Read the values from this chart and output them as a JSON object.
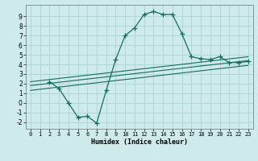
{
  "main_curve_x": [
    2,
    3,
    4,
    5,
    6,
    7,
    8,
    9,
    10,
    11,
    12,
    13,
    14,
    15,
    16,
    17,
    18,
    19,
    20,
    21,
    22,
    23
  ],
  "main_curve_y": [
    2.2,
    1.5,
    0.0,
    -1.5,
    -1.4,
    -2.1,
    1.3,
    4.5,
    7.0,
    7.8,
    9.2,
    9.5,
    9.2,
    9.2,
    7.2,
    4.8,
    4.6,
    4.5,
    4.8,
    4.2,
    4.2,
    4.3
  ],
  "line1_x": [
    0,
    23
  ],
  "line1_y": [
    2.2,
    4.8
  ],
  "line2_x": [
    0,
    23
  ],
  "line2_y": [
    1.8,
    4.4
  ],
  "line3_x": [
    0,
    23
  ],
  "line3_y": [
    1.3,
    3.9
  ],
  "line_color": "#1a6b5a",
  "bg_color": "#ceeaeb",
  "grid_color": "#aad4d5",
  "xlabel": "Humidex (Indice chaleur)",
  "xlim": [
    -0.5,
    23.5
  ],
  "ylim": [
    -2.7,
    10.2
  ],
  "yticks": [
    -2,
    -1,
    0,
    1,
    2,
    3,
    4,
    5,
    6,
    7,
    8,
    9
  ],
  "xticks": [
    0,
    1,
    2,
    3,
    4,
    5,
    6,
    7,
    8,
    9,
    10,
    11,
    12,
    13,
    14,
    15,
    16,
    17,
    18,
    19,
    20,
    21,
    22,
    23
  ]
}
